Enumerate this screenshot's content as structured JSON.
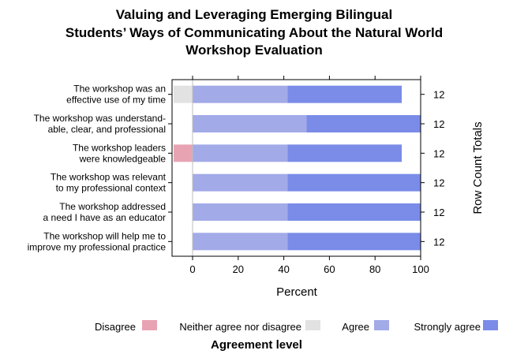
{
  "chart_data": {
    "type": "bar",
    "orientation": "horizontal",
    "stacked": true,
    "title": [
      "Valuing and Leveraging Emerging Bilingual",
      "Students’ Ways of Communicating About the Natural World",
      "Workshop Evaluation"
    ],
    "xlabel": "Percent",
    "ylabel_right": "Row Count Totals",
    "xlim": [
      -9,
      100
    ],
    "xticks": [
      0,
      20,
      40,
      60,
      80,
      100
    ],
    "grid": false,
    "legend": {
      "title": "Agreement level",
      "placement": "bottom"
    },
    "categories": [
      [
        "The workshop was an",
        "effective use of my time"
      ],
      [
        "The workshop was understand-",
        "able, clear, and professional"
      ],
      [
        "The workshop leaders",
        "were knowledgeable"
      ],
      [
        "The workshop was relevant",
        "to my professional context"
      ],
      [
        "The workshop addressed",
        "a need I have as an educator"
      ],
      [
        "The workshop will help me to",
        "improve my professional practice"
      ]
    ],
    "row_totals": [
      "12",
      "12",
      "12",
      "12",
      "12",
      "12"
    ],
    "series": [
      {
        "name": "Disagree",
        "color": "#e8a3b3",
        "values": [
          0,
          0,
          8.3,
          0,
          0,
          0
        ]
      },
      {
        "name": "Neither agree nor disagree",
        "color": "#e2e2e2",
        "values": [
          8.3,
          0,
          0,
          0,
          0,
          0
        ]
      },
      {
        "name": "Agree",
        "color": "#a2aae8",
        "values": [
          41.7,
          50,
          41.7,
          41.7,
          41.7,
          41.7
        ]
      },
      {
        "name": "Strongly agree",
        "color": "#7a8ce8",
        "values": [
          50,
          50,
          50,
          58.3,
          58.3,
          58.3
        ]
      }
    ]
  }
}
